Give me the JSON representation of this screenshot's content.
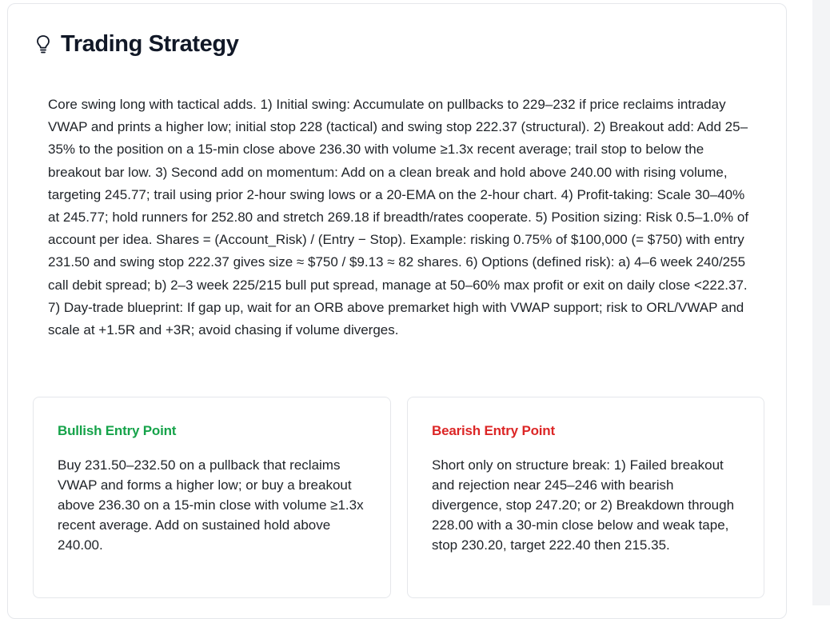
{
  "section": {
    "title": "Trading Strategy",
    "icon": "lightbulb-icon",
    "body": "Core swing long with tactical adds. 1) Initial swing: Accumulate on pullbacks to 229–232 if price reclaims intraday VWAP and prints a higher low; initial stop 228 (tactical) and swing stop 222.37 (structural). 2) Breakout add: Add 25–35% to the position on a 15-min close above 236.30 with volume ≥1.3x recent average; trail stop to below the breakout bar low. 3) Second add on momentum: Add on a clean break and hold above 240.00 with rising volume, targeting 245.77; trail using prior 2-hour swing lows or a 20-EMA on the 2-hour chart. 4) Profit-taking: Scale 30–40% at 245.77; hold runners for 252.80 and stretch 269.18 if breadth/rates cooperate. 5) Position sizing: Risk 0.5–1.0% of account per idea. Shares = (Account_Risk) / (Entry − Stop). Example: risking 0.75% of $100,000 (= $750) with entry 231.50 and swing stop 222.37 gives size ≈ $750 / $9.13 ≈ 82 shares. 6) Options (defined risk): a) 4–6 week 240/255 call debit spread; b) 2–3 week 225/215 bull put spread, manage at 50–60% max profit or exit on daily close <222.37. 7) Day-trade blueprint: If gap up, wait for an ORB above premarket high with VWAP support; risk to ORL/VWAP and scale at +1.5R and +3R; avoid chasing if volume diverges."
  },
  "bullish": {
    "heading": "Bullish Entry Point",
    "color": "#16a34a",
    "text": "Buy 231.50–232.50 on a pullback that reclaims VWAP and forms a higher low; or buy a breakout above 236.30 on a 15-min close with volume ≥1.3x recent average. Add on sustained hold above 240.00."
  },
  "bearish": {
    "heading": "Bearish Entry Point",
    "color": "#dc2626",
    "text": "Short only on structure break: 1) Failed breakout and rejection near 245–246 with bearish divergence, stop 247.20; or 2) Breakdown through 228.00 with a 30-min close below and weak tape, stop 230.20, target 222.40 then 215.35."
  }
}
